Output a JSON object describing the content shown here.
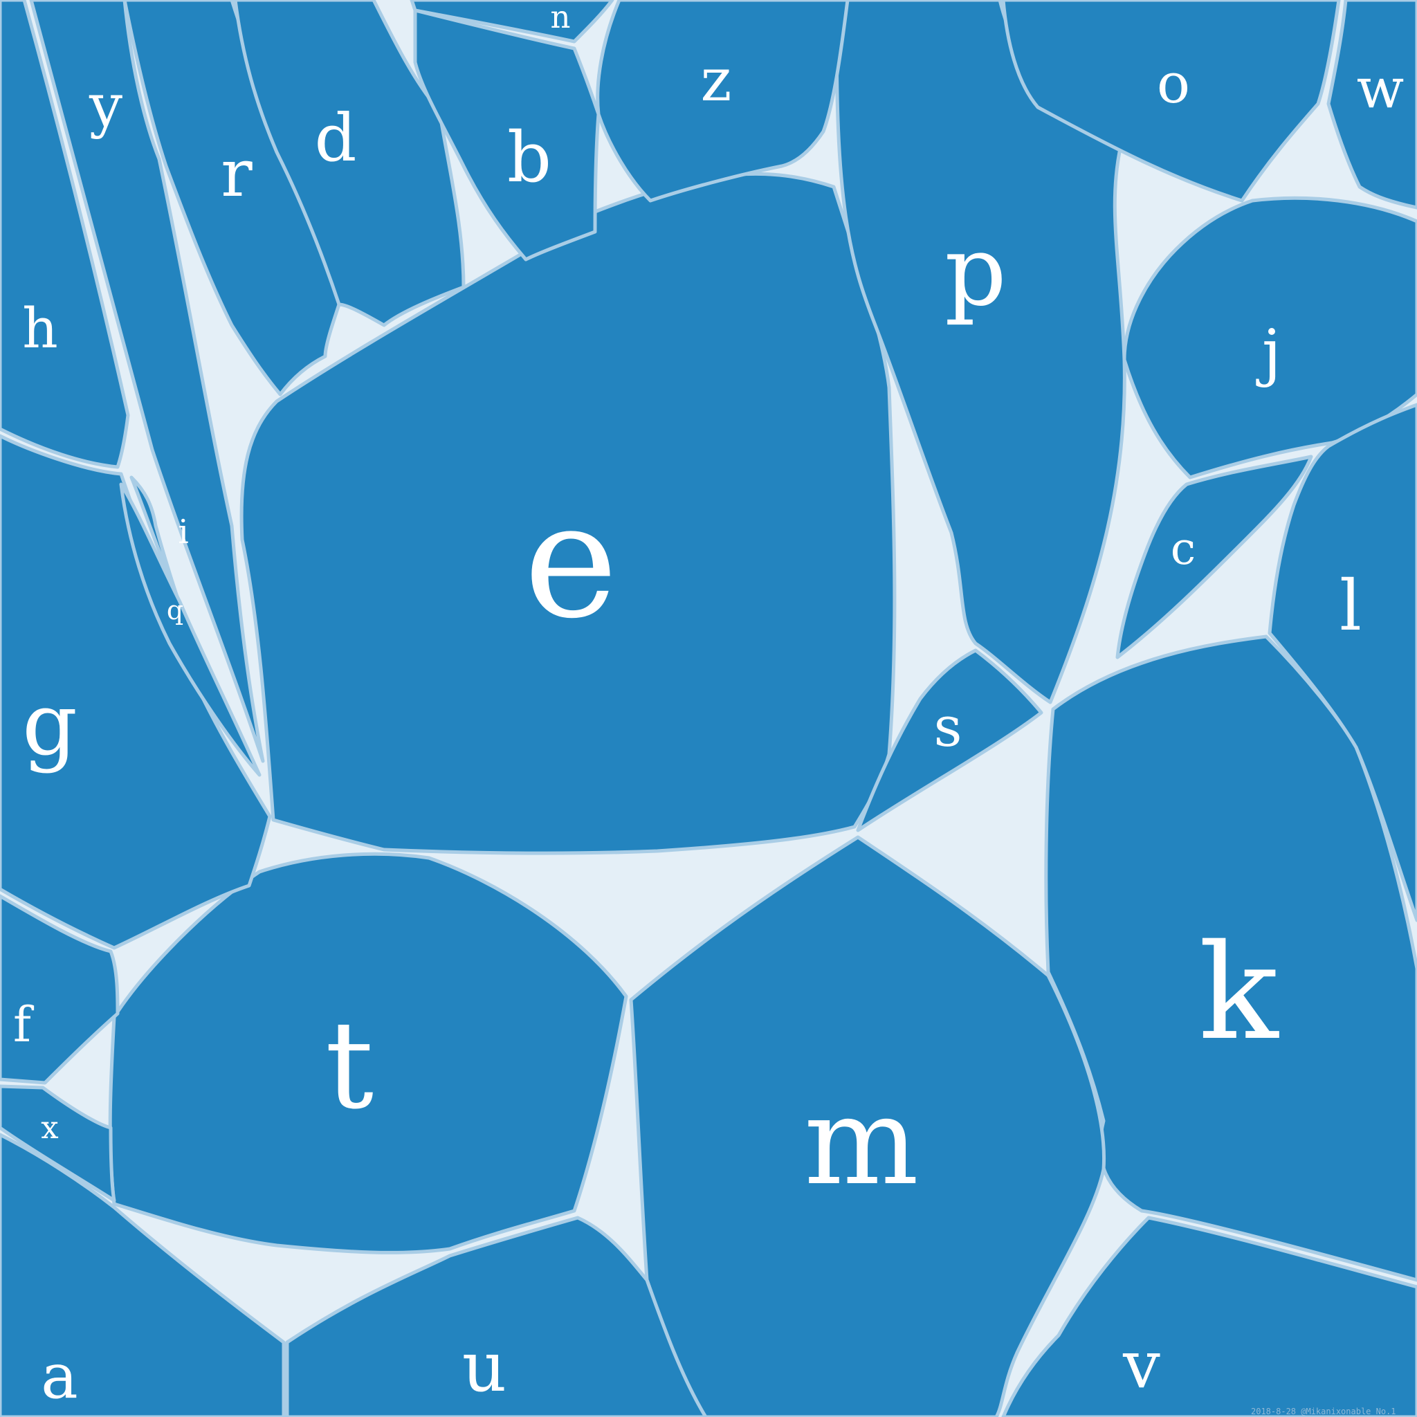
{
  "palette": {
    "cell": "#2384bf",
    "gap": "#e4eff7",
    "edge": "#a9cde6",
    "letter": "#ffffff"
  },
  "cells": {
    "e": "e",
    "p": "p",
    "k": "k",
    "m": "m",
    "t": "t",
    "g": "g",
    "h": "h",
    "a": "a",
    "u": "u",
    "v": "v",
    "l": "l",
    "j": "j",
    "o": "o",
    "w": "w",
    "z": "z",
    "b": "b",
    "d": "d",
    "r": "r",
    "y": "y",
    "n": "n",
    "c": "c",
    "s": "s",
    "f": "f",
    "x": "x",
    "i": "i",
    "q": "q"
  },
  "credit": "2018-8-28 @Mikanixonable No.1"
}
